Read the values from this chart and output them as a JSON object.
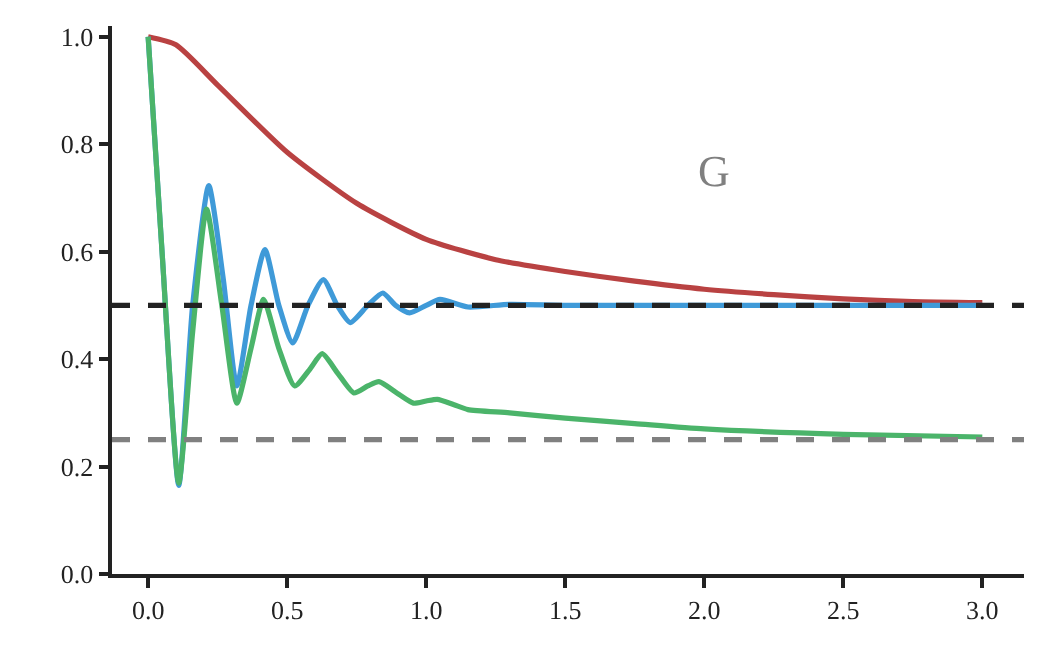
{
  "chart_data": {
    "type": "line",
    "annotations": [
      "G"
    ],
    "series": [
      {
        "color": "#b94242",
        "x": [
          0,
          0.1,
          0.25,
          0.5,
          0.75,
          1.0,
          1.25,
          1.5,
          1.75,
          2.0,
          2.25,
          2.5,
          2.75,
          3.0
        ],
        "values": [
          1.0,
          0.985,
          0.91,
          0.785,
          0.69,
          0.623,
          0.585,
          0.563,
          0.545,
          0.53,
          0.52,
          0.512,
          0.507,
          0.505
        ]
      },
      {
        "color": "#3f9ad8",
        "x": [
          0,
          0.05,
          0.11,
          0.16,
          0.218,
          0.27,
          0.319,
          0.37,
          0.42,
          0.47,
          0.52,
          0.575,
          0.63,
          0.68,
          0.727,
          0.79,
          0.844,
          0.89,
          0.94,
          1.0,
          1.05,
          1.15,
          1.3,
          1.5,
          2.0,
          2.5,
          3.0
        ],
        "values": [
          1.0,
          0.6,
          0.165,
          0.5,
          0.723,
          0.55,
          0.35,
          0.5,
          0.604,
          0.5,
          0.43,
          0.5,
          0.548,
          0.5,
          0.468,
          0.5,
          0.523,
          0.5,
          0.486,
          0.5,
          0.511,
          0.497,
          0.502,
          0.5,
          0.5,
          0.5,
          0.5
        ]
      },
      {
        "color": "#4bb46a",
        "x": [
          0,
          0.05,
          0.11,
          0.16,
          0.21,
          0.265,
          0.319,
          0.37,
          0.415,
          0.47,
          0.527,
          0.58,
          0.626,
          0.68,
          0.74,
          0.79,
          0.83,
          0.9,
          0.954,
          1.0,
          1.04,
          1.1,
          1.15,
          1.3,
          1.5,
          1.75,
          2.0,
          2.5,
          3.0
        ],
        "values": [
          1.0,
          0.6,
          0.169,
          0.45,
          0.679,
          0.5,
          0.318,
          0.42,
          0.511,
          0.42,
          0.35,
          0.38,
          0.41,
          0.375,
          0.337,
          0.35,
          0.358,
          0.335,
          0.318,
          0.322,
          0.325,
          0.315,
          0.306,
          0.3,
          0.29,
          0.28,
          0.27,
          0.26,
          0.255
        ]
      }
    ],
    "xlim": [
      -0.13,
      3.15
    ],
    "xticks": [
      {
        "value": 0,
        "label": "0.0"
      },
      0.5,
      {
        "value": 1,
        "label": "1.0"
      },
      1.5,
      {
        "value": 2,
        "label": "2.0"
      },
      2.5,
      {
        "value": 3,
        "label": "3.0"
      }
    ],
    "ylim": [
      0,
      1.02
    ],
    "yticks": [
      {
        "value": 0,
        "label": "0.0"
      },
      0.2,
      0.4,
      0.6,
      0.8,
      {
        "value": 1,
        "label": "1.0"
      }
    ],
    "ref_lines": [
      {
        "axis": "y",
        "value": 0.5,
        "color": "#222222",
        "line_style": "dashed"
      },
      {
        "axis": "y",
        "value": 0.25,
        "color": "#808080",
        "line_style": "dashed"
      }
    ],
    "marker": "none",
    "line_style": "solid"
  }
}
